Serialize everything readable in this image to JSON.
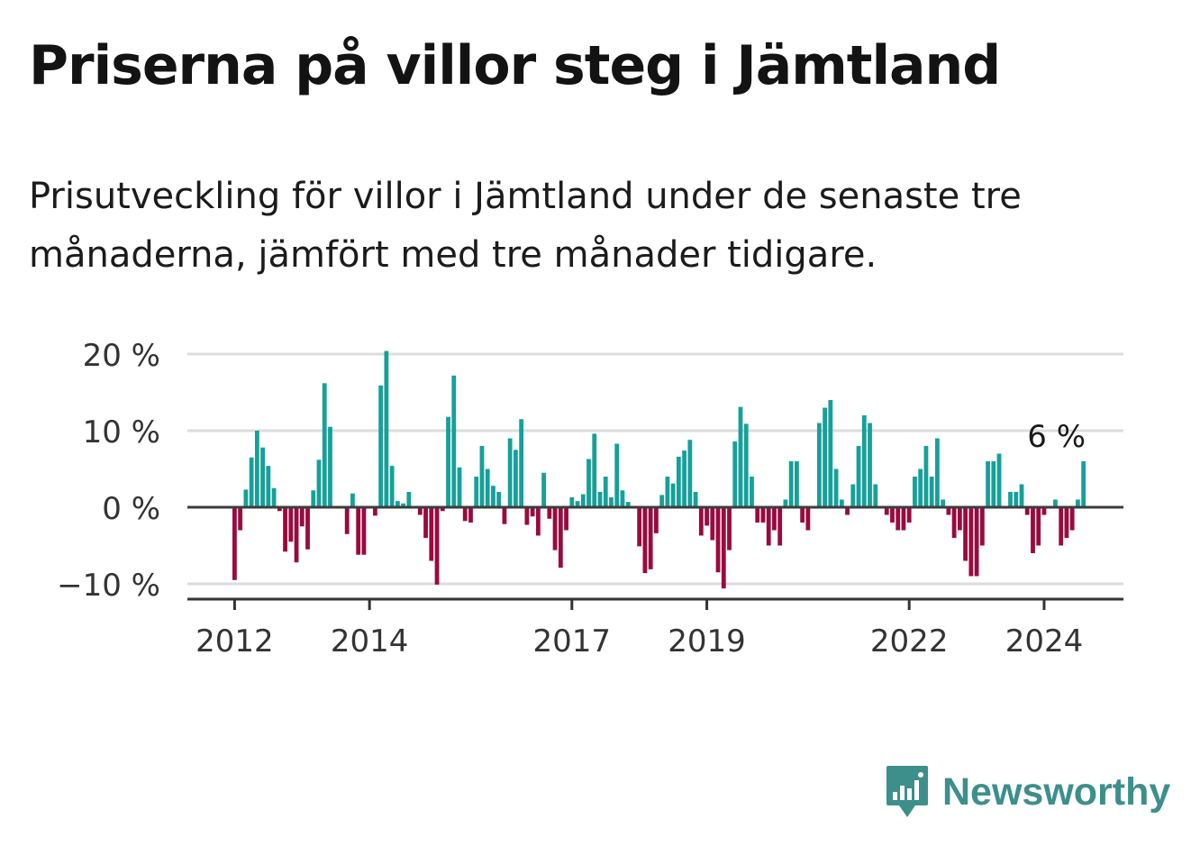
{
  "title": "Priserna på villor steg i Jämtland",
  "subtitle": "Prisutveckling för villor i Jämtland under de senaste tre månaderna, jämfört med tre månader tidigare.",
  "brand": {
    "name": "Newsworthy",
    "color": "#3d8f8c",
    "icon": "bar-chart-speech-bubble-icon"
  },
  "chart_data": {
    "type": "bar",
    "unit": "%",
    "ylim": [
      -12,
      20
    ],
    "y_ticks": [
      20,
      10,
      0,
      -10
    ],
    "y_tick_labels": [
      "20 %",
      "10 %",
      "0 %",
      "−10 %"
    ],
    "x_ticks": [
      "2012",
      "2014",
      "2017",
      "2019",
      "2022",
      "2024"
    ],
    "x_tick_index": [
      0,
      24,
      60,
      84,
      120,
      144
    ],
    "grid": true,
    "colors": {
      "positive": "#16a09a",
      "negative": "#9a0a3e"
    },
    "annotation": {
      "index": 151,
      "text": "6 %"
    },
    "start_month": "2012-01",
    "values": [
      -9.5,
      -3,
      2.3,
      6.5,
      10,
      7.8,
      5.4,
      2.5,
      -0.5,
      -5.8,
      -4.5,
      -7.2,
      -2.5,
      -5.5,
      2.2,
      6.2,
      16.2,
      10.5,
      0,
      0,
      -3.5,
      1.8,
      -6.2,
      -6.2,
      0,
      -1.1,
      15.9,
      20.4,
      5.4,
      0.8,
      0.5,
      2,
      0,
      -1,
      -4,
      -7,
      -10.1,
      -0.5,
      11.8,
      17.2,
      5.2,
      -1.8,
      -2,
      4,
      8,
      5,
      2.8,
      2,
      -2.2,
      9,
      7.5,
      11.5,
      -2.3,
      -1.2,
      -3.7,
      4.5,
      -1.5,
      -5.6,
      -7.9,
      -3,
      1.3,
      0.8,
      1.7,
      6.3,
      9.6,
      2,
      4,
      1.3,
      8.3,
      2.2,
      0.7,
      0,
      -5.1,
      -8.6,
      -8.1,
      -3.4,
      1.6,
      4,
      3.1,
      6.6,
      7.4,
      8.8,
      2,
      -3.7,
      -2.4,
      -4.3,
      -8.5,
      -10.6,
      -5.6,
      8.6,
      13.1,
      10.9,
      4,
      -2,
      -2,
      -5,
      -3,
      -5,
      1,
      6,
      6,
      -2,
      -3,
      0,
      11,
      13,
      14,
      5,
      1,
      -1,
      3,
      8,
      12,
      11,
      3,
      0,
      -1,
      -2,
      -3,
      -3,
      -2,
      4,
      5,
      8,
      4,
      9,
      1,
      -1,
      -4,
      -3,
      -7,
      -9,
      -9,
      -5,
      6,
      6,
      7,
      0,
      2,
      2,
      3,
      -1,
      -6,
      -5,
      -1,
      0,
      1,
      -5,
      -4,
      -3,
      1,
      6
    ]
  }
}
